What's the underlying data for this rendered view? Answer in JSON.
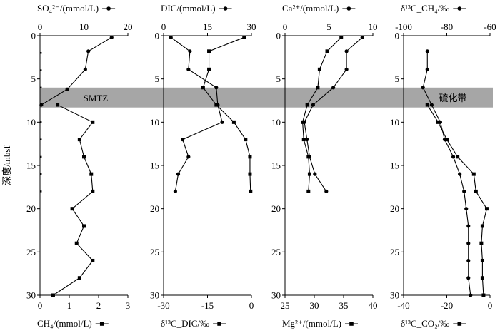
{
  "chart_data": {
    "type": "line",
    "ylabel": "深度/mbsf",
    "ylim": [
      0,
      30
    ],
    "y_ticks": [
      0,
      5,
      10,
      15,
      20,
      25,
      30
    ],
    "band": {
      "from": 6,
      "to": 8.3,
      "color": "#a6a6a6"
    },
    "band_labels": [
      "SMTZ",
      "硫化带"
    ],
    "panels": [
      {
        "top_axis": {
          "label": "SO₄²⁻/(mmol/L)",
          "range": [
            0,
            20
          ],
          "ticks": [
            0,
            10,
            20
          ]
        },
        "bottom_axis": {
          "label": "CH₄/(mmol/L)",
          "range": [
            0,
            3
          ],
          "ticks": [
            0,
            1,
            2,
            3
          ]
        },
        "series": [
          {
            "axis": "top",
            "marker": "circle",
            "depth": [
              0.2,
              1.8,
              3.9,
              6.2,
              8.0
            ],
            "values": [
              16.3,
              11.0,
              10.3,
              6.2,
              0.3
            ]
          },
          {
            "axis": "bottom",
            "marker": "square",
            "depth": [
              8.0,
              10.0,
              12.0,
              14.0,
              16.0,
              18.0,
              20.0,
              22.0,
              24.0,
              26.0,
              28.0,
              30.0
            ],
            "values": [
              0.6,
              1.8,
              1.35,
              1.5,
              1.75,
              1.8,
              1.1,
              1.5,
              1.25,
              1.8,
              1.35,
              0.45
            ]
          },
          {
            "axis": "bottom",
            "marker": "tick",
            "depth": [
              2.0,
              4.0,
              6.0,
              8.0,
              10.0,
              12.0,
              14.0,
              16.0,
              18.0
            ],
            "values": [
              0.03,
              0.03,
              0.03,
              0.03,
              0.03,
              0.03,
              0.03,
              0.03,
              0.03
            ]
          }
        ]
      },
      {
        "top_axis": {
          "label": "DIC/(mmol/L)",
          "range": [
            0,
            30
          ],
          "ticks": [
            0,
            15,
            30
          ]
        },
        "bottom_axis": {
          "label": "δ¹³C_DIC/‰",
          "range": [
            -30,
            0
          ],
          "ticks": [
            -30,
            -15,
            0
          ]
        },
        "series": [
          {
            "axis": "top",
            "marker": "circle",
            "depth": [
              0.2,
              1.8,
              3.9,
              6.0,
              8.0,
              10.0,
              12.0,
              14.0,
              16.0,
              18.0
            ],
            "values": [
              2.5,
              9.0,
              8.5,
              18.0,
              18.5,
              20.0,
              6.5,
              8.5,
              5.0,
              4.0
            ]
          },
          {
            "axis": "bottom",
            "marker": "square",
            "depth": [
              0.2,
              1.8,
              3.9,
              6.0,
              8.0,
              10.0,
              12.0,
              14.0,
              16.0,
              18.0
            ],
            "values": [
              -2.5,
              -14.5,
              -14.5,
              -16.5,
              -12.0,
              -6.0,
              -2.0,
              -0.5,
              -0.5,
              -0.3
            ]
          }
        ]
      },
      {
        "top_axis": {
          "label": "Ca²⁺/(mmol/L)",
          "range": [
            0,
            10
          ],
          "ticks": [
            0,
            5,
            10
          ]
        },
        "bottom_axis": {
          "label": "Mg²⁺/(mmol/L)",
          "range": [
            25,
            40
          ],
          "ticks": [
            25,
            30,
            35,
            40
          ]
        },
        "series": [
          {
            "axis": "top",
            "marker": "circle",
            "depth": [
              0.2,
              1.8,
              3.9,
              6.0,
              8.0,
              10.0,
              12.0,
              14.0,
              16.0,
              18.0
            ],
            "values": [
              8.8,
              7.0,
              7.0,
              5.5,
              3.2,
              2.2,
              2.5,
              2.8,
              3.4,
              4.7
            ]
          },
          {
            "axis": "bottom",
            "marker": "square",
            "depth": [
              0.2,
              1.8,
              3.9,
              6.0,
              8.0,
              10.0,
              12.0,
              14.0,
              16.0,
              18.0
            ],
            "values": [
              34.6,
              32.2,
              30.9,
              30.6,
              28.8,
              28.0,
              28.2,
              29.0,
              29.2,
              29.0
            ]
          }
        ]
      },
      {
        "top_axis": {
          "label": "δ¹³C_CH₄/‰",
          "range": [
            -100,
            -60
          ],
          "ticks": [
            -100,
            -80,
            -60
          ]
        },
        "bottom_axis": {
          "label": "δ¹³C_CO₂/‰",
          "range": [
            -40,
            0
          ],
          "ticks": [
            -40,
            -20,
            0
          ]
        },
        "series": [
          {
            "axis": "top",
            "marker": "circle",
            "depth": [
              1.8,
              3.9,
              6.0,
              8.0,
              10.0,
              12.0,
              14.0,
              16.0,
              18.0,
              20.0,
              22.0,
              24.0,
              26.0,
              28.0,
              30.0
            ],
            "values": [
              -89,
              -89,
              -91,
              -87,
              -83,
              -81,
              -77,
              -74,
              -72,
              -71,
              -70,
              -70,
              -70,
              -70,
              -69
            ]
          },
          {
            "axis": "bottom",
            "marker": "square",
            "depth": [
              8.0,
              10.0,
              12.0,
              14.0,
              16.0,
              18.0,
              20.0,
              22.0,
              24.0,
              26.0,
              28.0,
              30.0
            ],
            "values": [
              -29,
              -24,
              -20,
              -15,
              -7.5,
              -6.5,
              -1.5,
              -3.5,
              -4.0,
              -3.5,
              -3.5,
              -3.0
            ]
          }
        ]
      }
    ]
  }
}
